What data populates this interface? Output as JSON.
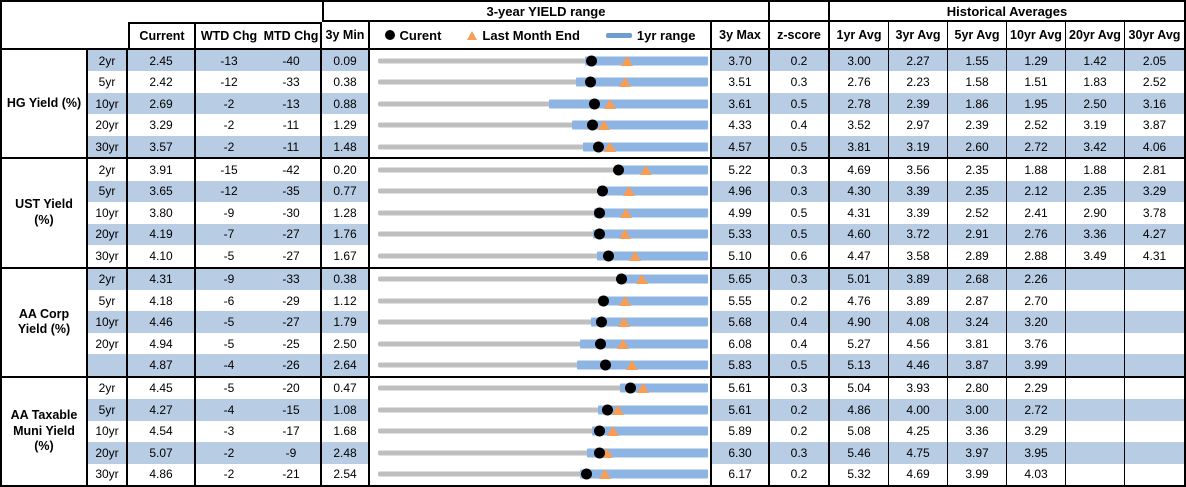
{
  "header": {
    "range_title": "3-year YIELD range",
    "hist_title": "Historical Averages",
    "col_current": "Current",
    "col_wtd": "WTD Chg",
    "col_mtd": "MTD Chg",
    "col_min": "3y Min",
    "col_max": "3y Max",
    "col_z": "z-score",
    "legend_current": "Curent",
    "legend_last_month": "Last Month End",
    "legend_range": "1yr range",
    "avg_cols": [
      "1yr Avg",
      "3yr Avg",
      "5yr Avg",
      "10yr Avg",
      "20yr Avg",
      "30yr Avg"
    ]
  },
  "colors": {
    "row_stripe": "#B8CCE4",
    "bar_1y_blue": "#8DB4E2",
    "bar_3y_gray": "#BFBFBF",
    "marker_orange": "#F79E54",
    "marker_black": "#000000",
    "legend_dash_blue": "#6D9ECD",
    "border_black": "#000000"
  },
  "chart_data": {
    "type": "table",
    "title": "3-year YIELD range",
    "note": "Each row is a range chart scaled from 3y Min to 3y Max; gray bar = 3y range, blue bar = 1yr range (low_1y to 3y max), black dot = current yield, orange triangle = last month end yield.",
    "legend": [
      {
        "marker": "black-dot",
        "label": "Curent"
      },
      {
        "marker": "orange-triangle",
        "label": "Last Month End"
      },
      {
        "marker": "blue-bar",
        "label": "1yr range"
      }
    ],
    "columns": [
      "Current",
      "WTD Chg",
      "MTD Chg",
      "3y Min",
      "3y Max",
      "z-score",
      "1yr Avg",
      "3yr Avg",
      "5yr Avg",
      "10yr Avg",
      "20yr Avg",
      "30yr Avg"
    ],
    "groups": [
      {
        "label": "HG Yield (%)",
        "rows": [
          {
            "tenor": "2yr",
            "current": "2.45",
            "wtd_chg": "-13",
            "mtd_chg": "-40",
            "min_3y": "0.09",
            "max_3y": "3.70",
            "z_score": "0.2",
            "last_month_end": 2.85,
            "low_1y": 2.38,
            "avgs": [
              "3.00",
              "2.27",
              "1.55",
              "1.29",
              "1.42",
              "2.05"
            ]
          },
          {
            "tenor": "5yr",
            "current": "2.42",
            "wtd_chg": "-12",
            "mtd_chg": "-33",
            "min_3y": "0.38",
            "max_3y": "3.51",
            "z_score": "0.3",
            "last_month_end": 2.75,
            "low_1y": 2.28,
            "avgs": [
              "2.76",
              "2.23",
              "1.58",
              "1.51",
              "1.83",
              "2.52"
            ]
          },
          {
            "tenor": "10yr",
            "current": "2.69",
            "wtd_chg": "-2",
            "mtd_chg": "-13",
            "min_3y": "0.88",
            "max_3y": "3.61",
            "z_score": "0.5",
            "last_month_end": 2.82,
            "low_1y": 2.31,
            "avgs": [
              "2.78",
              "2.39",
              "1.86",
              "1.95",
              "2.50",
              "3.16"
            ]
          },
          {
            "tenor": "20yr",
            "current": "3.29",
            "wtd_chg": "-2",
            "mtd_chg": "-11",
            "min_3y": "1.29",
            "max_3y": "4.33",
            "z_score": "0.4",
            "last_month_end": 3.4,
            "low_1y": 3.1,
            "avgs": [
              "3.52",
              "2.97",
              "2.39",
              "2.52",
              "3.19",
              "3.87"
            ]
          },
          {
            "tenor": "30yr",
            "current": "3.57",
            "wtd_chg": "-2",
            "mtd_chg": "-11",
            "min_3y": "1.48",
            "max_3y": "4.57",
            "z_score": "0.5",
            "last_month_end": 3.68,
            "low_1y": 3.42,
            "avgs": [
              "3.81",
              "3.19",
              "2.60",
              "2.72",
              "3.42",
              "4.06"
            ]
          }
        ]
      },
      {
        "label": "UST Yield (%)",
        "rows": [
          {
            "tenor": "2yr",
            "current": "3.91",
            "wtd_chg": "-15",
            "mtd_chg": "-42",
            "min_3y": "0.20",
            "max_3y": "5.22",
            "z_score": "0.3",
            "last_month_end": 4.33,
            "low_1y": 3.85,
            "avgs": [
              "4.69",
              "3.56",
              "2.35",
              "1.88",
              "1.88",
              "2.81"
            ]
          },
          {
            "tenor": "5yr",
            "current": "3.65",
            "wtd_chg": "-12",
            "mtd_chg": "-35",
            "min_3y": "0.77",
            "max_3y": "4.96",
            "z_score": "0.3",
            "last_month_end": 4.0,
            "low_1y": 3.6,
            "avgs": [
              "4.30",
              "3.39",
              "2.35",
              "2.12",
              "2.35",
              "3.29"
            ]
          },
          {
            "tenor": "10yr",
            "current": "3.80",
            "wtd_chg": "-9",
            "mtd_chg": "-30",
            "min_3y": "1.28",
            "max_3y": "4.99",
            "z_score": "0.5",
            "last_month_end": 4.1,
            "low_1y": 3.74,
            "avgs": [
              "4.31",
              "3.39",
              "2.52",
              "2.41",
              "2.90",
              "3.78"
            ]
          },
          {
            "tenor": "20yr",
            "current": "4.19",
            "wtd_chg": "-7",
            "mtd_chg": "-27",
            "min_3y": "1.76",
            "max_3y": "5.33",
            "z_score": "0.5",
            "last_month_end": 4.46,
            "low_1y": 4.11,
            "avgs": [
              "4.60",
              "3.72",
              "2.91",
              "2.76",
              "3.36",
              "4.27"
            ]
          },
          {
            "tenor": "30yr",
            "current": "4.10",
            "wtd_chg": "-5",
            "mtd_chg": "-27",
            "min_3y": "1.67",
            "max_3y": "5.10",
            "z_score": "0.6",
            "last_month_end": 4.37,
            "low_1y": 3.97,
            "avgs": [
              "4.47",
              "3.58",
              "2.89",
              "2.88",
              "3.49",
              "4.31"
            ]
          }
        ]
      },
      {
        "label": "AA Corp Yield (%)",
        "rows": [
          {
            "tenor": "2yr",
            "current": "4.31",
            "wtd_chg": "-9",
            "mtd_chg": "-33",
            "min_3y": "0.38",
            "max_3y": "5.65",
            "z_score": "0.3",
            "last_month_end": 4.64,
            "low_1y": 4.24,
            "avgs": [
              "5.01",
              "3.89",
              "2.68",
              "2.26",
              "",
              ""
            ]
          },
          {
            "tenor": "5yr",
            "current": "4.18",
            "wtd_chg": "-6",
            "mtd_chg": "-29",
            "min_3y": "1.12",
            "max_3y": "5.55",
            "z_score": "0.2",
            "last_month_end": 4.47,
            "low_1y": 4.12,
            "avgs": [
              "4.76",
              "3.89",
              "2.87",
              "2.70",
              "",
              ""
            ]
          },
          {
            "tenor": "10yr",
            "current": "4.46",
            "wtd_chg": "-5",
            "mtd_chg": "-27",
            "min_3y": "1.79",
            "max_3y": "5.68",
            "z_score": "0.4",
            "last_month_end": 4.73,
            "low_1y": 4.33,
            "avgs": [
              "4.90",
              "4.08",
              "3.24",
              "3.20",
              "",
              ""
            ]
          },
          {
            "tenor": "20yr",
            "current": "4.94",
            "wtd_chg": "-5",
            "mtd_chg": "-25",
            "min_3y": "2.50",
            "max_3y": "6.08",
            "z_score": "0.4",
            "last_month_end": 5.19,
            "low_1y": 4.72,
            "avgs": [
              "5.27",
              "4.56",
              "3.81",
              "3.76",
              "",
              ""
            ]
          },
          {
            "tenor": "",
            "current": "4.87",
            "wtd_chg": "-4",
            "mtd_chg": "-26",
            "min_3y": "2.64",
            "max_3y": "5.83",
            "z_score": "0.5",
            "last_month_end": 5.13,
            "low_1y": 4.59,
            "avgs": [
              "5.13",
              "4.46",
              "3.87",
              "3.99",
              "",
              ""
            ]
          }
        ]
      },
      {
        "label": "AA Taxable Muni Yield (%)",
        "rows": [
          {
            "tenor": "2yr",
            "current": "4.45",
            "wtd_chg": "-5",
            "mtd_chg": "-20",
            "min_3y": "0.47",
            "max_3y": "5.61",
            "z_score": "0.3",
            "last_month_end": 4.65,
            "low_1y": 4.29,
            "avgs": [
              "5.04",
              "3.93",
              "2.80",
              "2.29",
              "",
              ""
            ]
          },
          {
            "tenor": "5yr",
            "current": "4.27",
            "wtd_chg": "-4",
            "mtd_chg": "-15",
            "min_3y": "1.08",
            "max_3y": "5.61",
            "z_score": "0.2",
            "last_month_end": 4.42,
            "low_1y": 4.14,
            "avgs": [
              "4.86",
              "4.00",
              "3.00",
              "2.72",
              "",
              ""
            ]
          },
          {
            "tenor": "10yr",
            "current": "4.54",
            "wtd_chg": "-3",
            "mtd_chg": "-17",
            "min_3y": "1.68",
            "max_3y": "5.89",
            "z_score": "0.2",
            "last_month_end": 4.71,
            "low_1y": 4.44,
            "avgs": [
              "5.08",
              "4.25",
              "3.36",
              "3.29",
              "",
              ""
            ]
          },
          {
            "tenor": "20yr",
            "current": "5.07",
            "wtd_chg": "-2",
            "mtd_chg": "-9",
            "min_3y": "2.48",
            "max_3y": "6.30",
            "z_score": "0.3",
            "last_month_end": 5.16,
            "low_1y": 4.93,
            "avgs": [
              "5.46",
              "4.75",
              "3.97",
              "3.95",
              "",
              ""
            ]
          },
          {
            "tenor": "30yr",
            "current": "4.86",
            "wtd_chg": "-2",
            "mtd_chg": "-21",
            "min_3y": "2.54",
            "max_3y": "6.17",
            "z_score": "0.2",
            "last_month_end": 5.07,
            "low_1y": 4.79,
            "avgs": [
              "5.32",
              "4.69",
              "3.99",
              "4.03",
              "",
              ""
            ]
          }
        ]
      }
    ]
  }
}
